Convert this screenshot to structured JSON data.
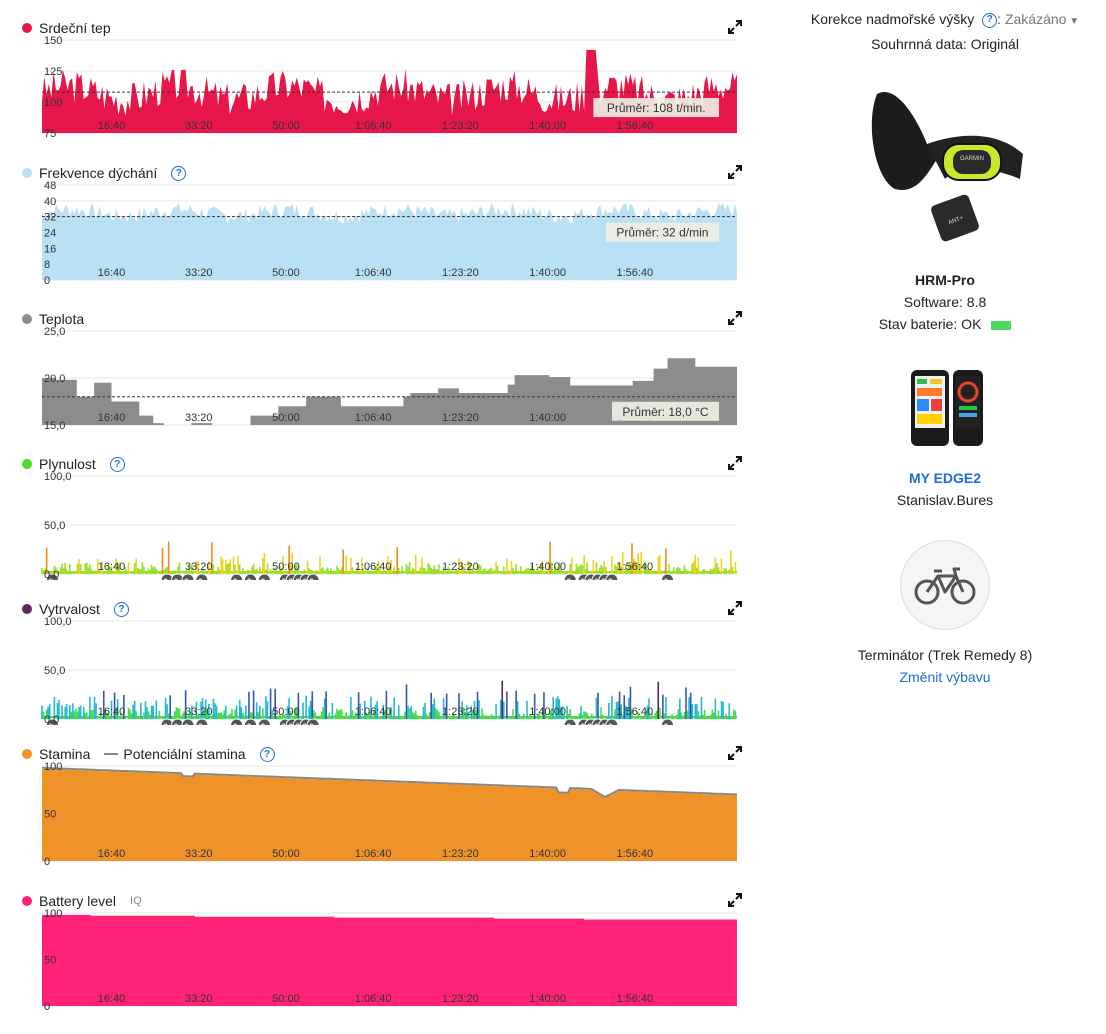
{
  "header": {
    "altitude_label": "Korekce nadmořské výšky",
    "altitude_value": "Zakázáno",
    "summary_label": "Souhrnná data: Originál"
  },
  "sensor": {
    "name": "HRM-Pro",
    "brand": "GARMIN",
    "software": "Software: 8.8",
    "battery": "Stav baterie: OK",
    "battery_color": "#4cd964"
  },
  "device": {
    "name": "MY EDGE2",
    "owner": "Stanislav.Bures"
  },
  "gear": {
    "name": "Terminátor (Trek Remedy 8)",
    "change_link": "Změnit výbavu"
  },
  "time_ticks": [
    "16:40",
    "33:20",
    "50:00",
    "1:06:40",
    "1:23:20",
    "1:40:00",
    "1:56:40"
  ],
  "charts": [
    {
      "title": "Srdeční tep",
      "color": "#e8174a",
      "help": false,
      "yticks": [
        "150",
        "125",
        "100",
        "75"
      ],
      "ymin": 75,
      "ymax": 150,
      "avg": 108,
      "avg_label": "Průměr: 108 t/min.",
      "type": "area",
      "base": 108,
      "amp": 14,
      "seed": 3
    },
    {
      "title": "Frekvence dýchání",
      "color": "#b9e0f5",
      "help": true,
      "yticks": [
        "48",
        "40",
        "32",
        "24",
        "16",
        "8",
        "0"
      ],
      "ymin": 0,
      "ymax": 48,
      "avg": 32,
      "avg_label": "Průměr: 32 d/min",
      "type": "area",
      "base": 34,
      "amp": 4,
      "seed": 7
    },
    {
      "title": "Teplota",
      "color": "#8c8c8c",
      "help": false,
      "yticks": [
        "25,0",
        "20,0",
        "15,0"
      ],
      "ymin": 15,
      "ymax": 25,
      "avg": 18,
      "avg_label": "Průměr: 18,0 °C",
      "type": "steps",
      "steps": [
        [
          0,
          20
        ],
        [
          0.02,
          19.8
        ],
        [
          0.05,
          18
        ],
        [
          0.075,
          19.5
        ],
        [
          0.1,
          17.5
        ],
        [
          0.14,
          16
        ],
        [
          0.16,
          15.2
        ],
        [
          0.175,
          15
        ],
        [
          0.215,
          15.2
        ],
        [
          0.245,
          15
        ],
        [
          0.3,
          16
        ],
        [
          0.34,
          17
        ],
        [
          0.38,
          18
        ],
        [
          0.43,
          17
        ],
        [
          0.52,
          18
        ],
        [
          0.53,
          18.4
        ],
        [
          0.57,
          18.9
        ],
        [
          0.6,
          18.4
        ],
        [
          0.67,
          19.3
        ],
        [
          0.68,
          20.3
        ],
        [
          0.73,
          20.1
        ],
        [
          0.76,
          19.2
        ],
        [
          0.85,
          19.7
        ],
        [
          0.88,
          21
        ],
        [
          0.9,
          22.1
        ],
        [
          0.94,
          21.2
        ],
        [
          1,
          21.2
        ]
      ]
    },
    {
      "title": "Plynulost",
      "color": "#44dd22",
      "help": true,
      "yticks": [
        "100,0",
        "50,0",
        "0,0"
      ],
      "ymin": 0,
      "ymax": 100,
      "type": "flow",
      "seed": 11
    },
    {
      "title": "Vytrvalost",
      "color": "#5a2a5a",
      "help": true,
      "yticks": [
        "100,0",
        "50,0",
        "0,0"
      ],
      "ymin": 0,
      "ymax": 100,
      "type": "grit",
      "seed": 19
    },
    {
      "title": "Stamina",
      "color": "#f0922a",
      "help": true,
      "legend2": "Potenciální stamina",
      "yticks": [
        "100",
        "50",
        "0"
      ],
      "ymin": 0,
      "ymax": 100,
      "type": "stamina"
    },
    {
      "title": "Battery level",
      "color": "#ff2277",
      "help": false,
      "iq": "IQ",
      "yticks": [
        "100",
        "50",
        "0"
      ],
      "ymin": 0,
      "ymax": 100,
      "type": "battery"
    }
  ]
}
